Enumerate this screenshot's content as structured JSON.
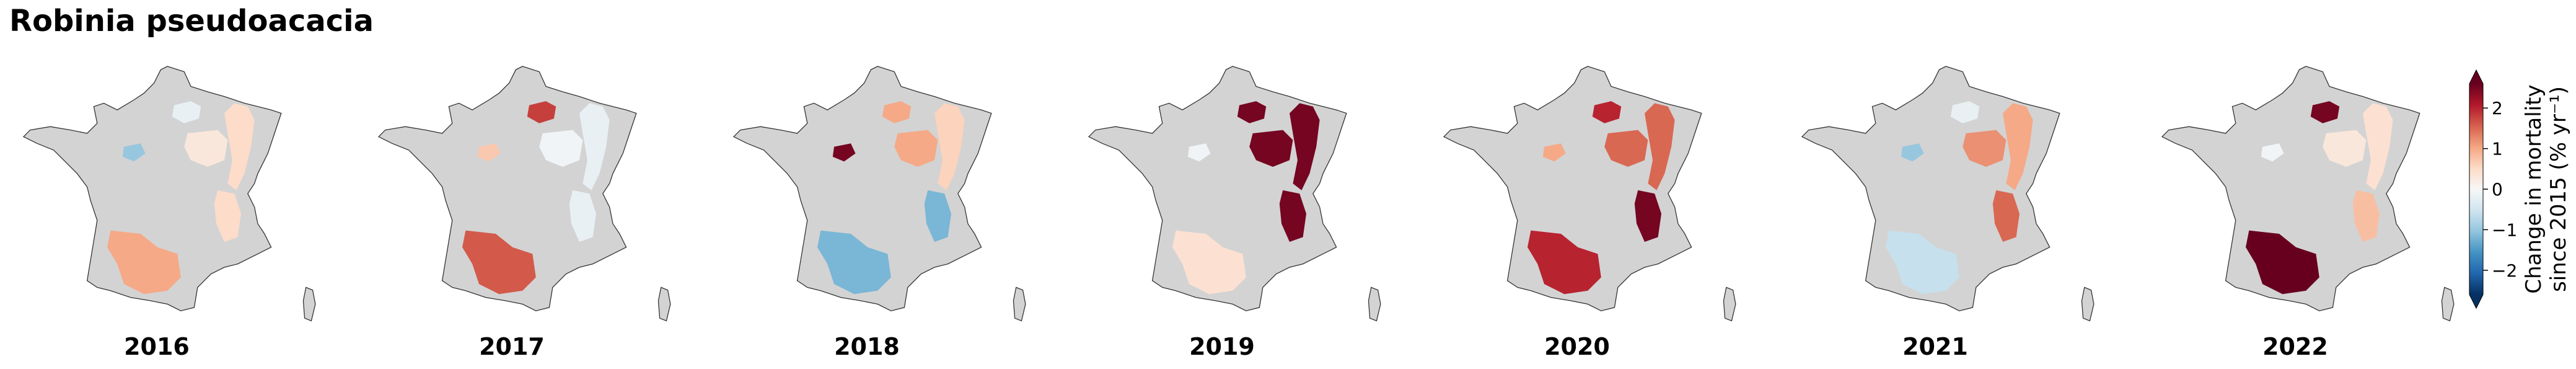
{
  "title": "Robinia pseudoacacia",
  "land_color": "#d3d3d3",
  "panels": [
    {
      "year": "2016",
      "values": [
        -0.2,
        0.5,
        0.5,
        1.0,
        -1.0,
        0.3
      ]
    },
    {
      "year": "2017",
      "values": [
        1.8,
        -0.2,
        -0.2,
        1.6,
        0.7,
        -0.1
      ]
    },
    {
      "year": "2018",
      "values": [
        1.0,
        0.6,
        -1.2,
        -1.2,
        2.5,
        1.0
      ]
    },
    {
      "year": "2019",
      "values": [
        2.5,
        2.5,
        2.5,
        0.4,
        -0.1,
        2.5
      ]
    },
    {
      "year": "2020",
      "values": [
        2.0,
        1.5,
        2.5,
        2.0,
        1.0,
        1.5
      ]
    },
    {
      "year": "2021",
      "values": [
        -0.2,
        1.0,
        1.5,
        -0.6,
        -1.0,
        1.2
      ]
    },
    {
      "year": "2022",
      "values": [
        2.5,
        0.4,
        0.8,
        2.8,
        -0.1,
        0.3
      ]
    }
  ],
  "colorbar": {
    "label_lines": [
      "Change in mortality",
      "since 2015 (% yr⁻¹)"
    ],
    "lim": [
      -2.6,
      2.6
    ],
    "ticks": [
      2,
      1,
      0,
      {
        "value": -1,
        "label": "−1"
      },
      {
        "value": -2,
        "label": "−2"
      }
    ],
    "colors": [
      "#053061",
      "#2166ac",
      "#4393c3",
      "#92c5de",
      "#d1e5f0",
      "#f7f7f7",
      "#fddbc7",
      "#f4a582",
      "#d6604d",
      "#b2182b",
      "#67001f"
    ]
  }
}
